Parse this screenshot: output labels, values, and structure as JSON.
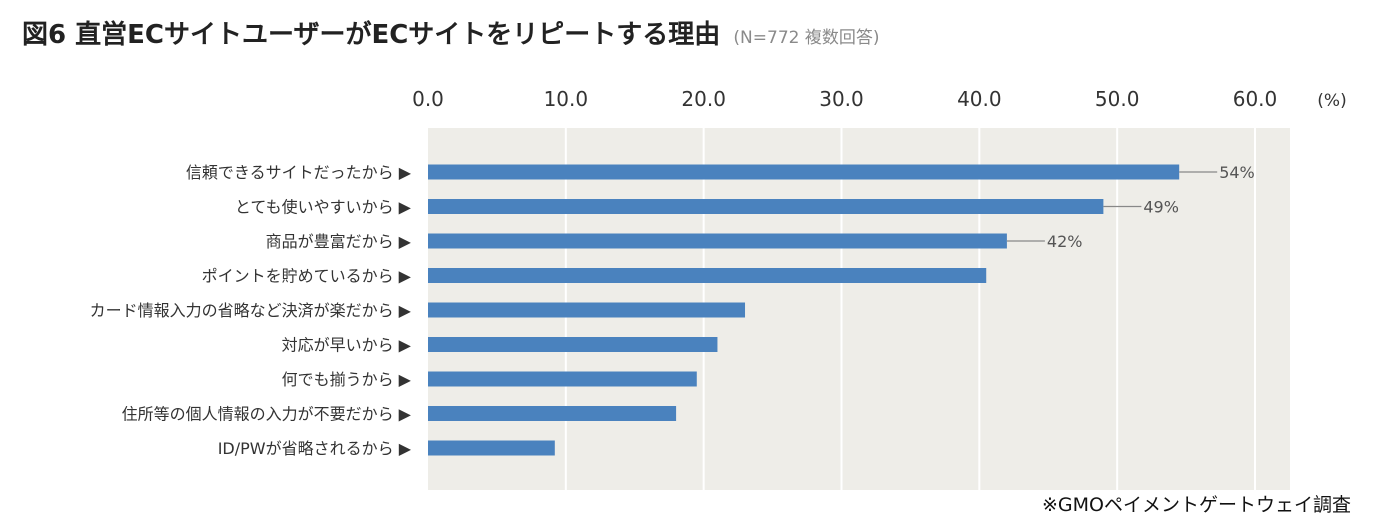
{
  "header": {
    "title": "図6  直営ECサイトユーザーがECサイトをリピートする理由",
    "note": "(N=772  複数回答)"
  },
  "footer": {
    "source": "※GMOペイメントゲートウェイ調査"
  },
  "colors": {
    "bar": "#4a82be",
    "plot_background": "#eeede8",
    "gridline": "#ffffff",
    "text": "#333333"
  },
  "chart_data": {
    "type": "bar",
    "orientation": "horizontal",
    "unit_label": "(%)",
    "xlim": [
      0,
      60
    ],
    "ticks": [
      "0.0",
      "10.0",
      "20.0",
      "30.0",
      "40.0",
      "50.0",
      "60.0"
    ],
    "grid": true,
    "categories": [
      "信頼できるサイトだったから ▶",
      "とても使いやすいから ▶",
      "商品が豊富だから ▶",
      "ポイントを貯めているから ▶",
      "カード情報入力の省略など決済が楽だから ▶",
      "対応が早いから ▶",
      "何でも揃うから ▶",
      "住所等の個人情報の入力が不要だから ▶",
      "ID/PWが省略されるから ▶"
    ],
    "values": [
      54.5,
      49,
      42,
      40.5,
      23,
      21,
      19.5,
      18,
      9.2
    ],
    "data_labels": [
      "54%",
      "49%",
      "42%",
      "",
      "",
      "",
      "",
      "",
      ""
    ]
  }
}
